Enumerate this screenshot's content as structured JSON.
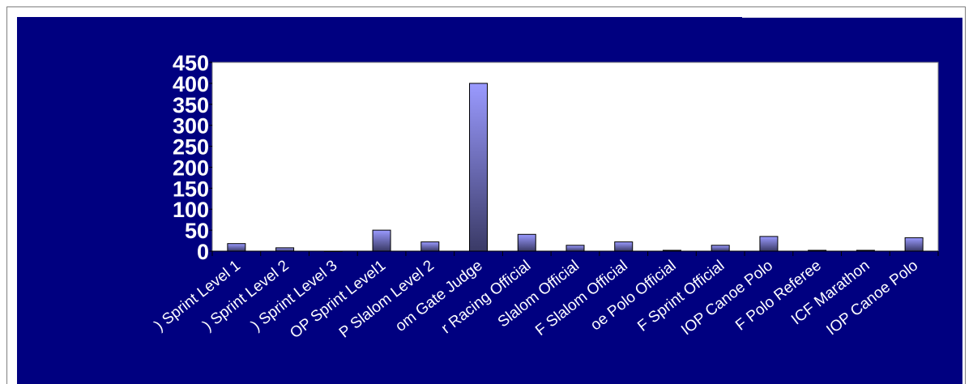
{
  "colors": {
    "background": "#000080",
    "plot_area": "#ffffff",
    "bar_top": "#9a9aff",
    "bar_bottom": "#3a3a66",
    "axis": "#000000",
    "text": "#ffffff"
  },
  "chart_data": {
    "type": "bar",
    "title": "",
    "xlabel": "",
    "ylabel": "",
    "ylim": [
      0,
      450
    ],
    "yticks": [
      0,
      50,
      100,
      150,
      200,
      250,
      300,
      350,
      400,
      450
    ],
    "grid": false,
    "legend": "none",
    "categories": [
      "(...) Sprint Level 1",
      "(...) Sprint Level 2",
      "(...) Sprint Level 3",
      "(...)OP Sprint Level1",
      "(...)P Slalom Level 2",
      "(...)om Gate Judge",
      "(...)r Racing Official",
      "(...) Slalom Official",
      "(...)F Slalom Official",
      "(...)oe Polo Official",
      "(...)F Sprint Official",
      "(...)IOP Canoe Polo",
      "(...)F Polo Referee",
      "ICF Marathon",
      "(...)IOP Canoe Polo"
    ],
    "tick_labels": [
      ") Sprint Level 1",
      ") Sprint Level 2",
      ") Sprint Level 3",
      "OP Sprint Level1",
      "P Slalom Level 2",
      "om Gate Judge",
      "r Racing Official",
      " Slalom Official",
      "F Slalom Official",
      "oe Polo Official",
      "F Sprint Official",
      "IOP Canoe Polo",
      "F Polo Referee",
      "ICF Marathon",
      "IOP Canoe Polo"
    ],
    "values": [
      18,
      8,
      0,
      50,
      22,
      400,
      40,
      14,
      22,
      2,
      14,
      35,
      2,
      2,
      32
    ]
  }
}
